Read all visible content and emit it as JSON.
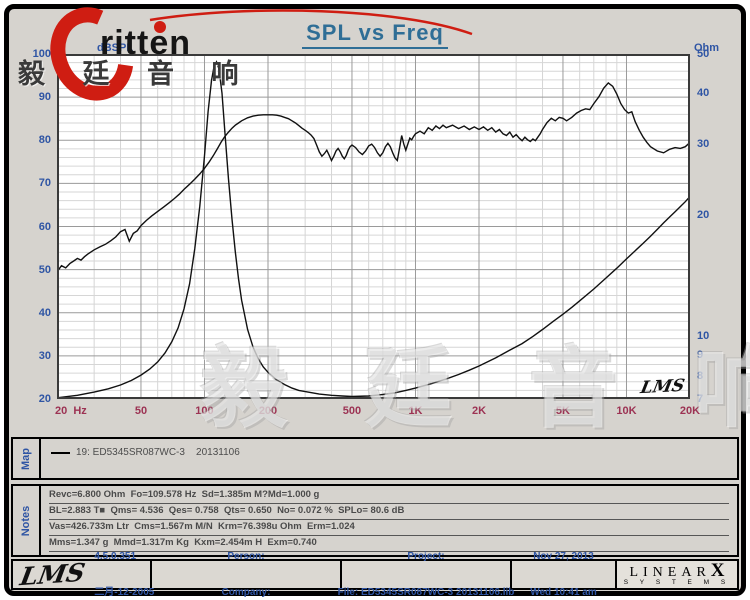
{
  "page": {
    "title": "SPL vs Freq"
  },
  "branding": {
    "logo_text": "ritten",
    "logo_cn": "毅 廷 音 响",
    "watermark": "毅 廷 音 响",
    "red": "#cf1d12"
  },
  "chart_data": {
    "type": "line",
    "title": "SPL vs Freq",
    "grid": "log-x, both axes on",
    "x_axis": {
      "scale": "log",
      "min": 20,
      "max": 20000,
      "ticks": [
        {
          "f": 20,
          "label": "20  Hz",
          "align": "left"
        },
        {
          "f": 50,
          "label": "50"
        },
        {
          "f": 100,
          "label": "100"
        },
        {
          "f": 200,
          "label": "200"
        },
        {
          "f": 500,
          "label": "500"
        },
        {
          "f": 1000,
          "label": "1K"
        },
        {
          "f": 2000,
          "label": "2K"
        },
        {
          "f": 5000,
          "label": "5K"
        },
        {
          "f": 10000,
          "label": "10K"
        },
        {
          "f": 20000,
          "label": "20K"
        }
      ],
      "major": [
        50,
        100,
        200,
        500,
        1000,
        2000,
        5000,
        10000
      ]
    },
    "y_left": {
      "label": "dBSPL",
      "scale": "linear",
      "min": 20,
      "max": 100,
      "major_step": 10,
      "minor_step": 2,
      "ticks": [
        100,
        90,
        80,
        70,
        60,
        50,
        40,
        30,
        20
      ]
    },
    "y_right": {
      "label": "Ohm",
      "scale": "log",
      "min": 7,
      "max": 50,
      "ticks": [
        50,
        40,
        30,
        20,
        10,
        9,
        8,
        7
      ]
    },
    "inner_signature": "LMS",
    "series": [
      {
        "name": "19: ED5345SR087WC-3  20131106 (SPL)",
        "axis": "left",
        "color": "#111111",
        "points": [
          [
            20,
            49.5
          ],
          [
            21,
            50.9
          ],
          [
            22,
            50.4
          ],
          [
            23,
            51.4
          ],
          [
            24,
            52.0
          ],
          [
            25,
            52.6
          ],
          [
            26,
            52.2
          ],
          [
            27,
            53.0
          ],
          [
            28,
            53.6
          ],
          [
            30,
            54.6
          ],
          [
            32,
            55.3
          ],
          [
            34,
            55.9
          ],
          [
            36,
            56.7
          ],
          [
            38,
            57.6
          ],
          [
            40,
            58.8
          ],
          [
            42,
            59.3
          ],
          [
            44,
            56.6
          ],
          [
            46,
            58.4
          ],
          [
            48,
            59.0
          ],
          [
            50,
            60.2
          ],
          [
            53,
            61.4
          ],
          [
            56,
            62.4
          ],
          [
            60,
            63.5
          ],
          [
            64,
            64.5
          ],
          [
            68,
            65.5
          ],
          [
            72,
            66.5
          ],
          [
            76,
            67.5
          ],
          [
            80,
            68.6
          ],
          [
            85,
            69.8
          ],
          [
            90,
            71.0
          ],
          [
            95,
            72.2
          ],
          [
            100,
            73.5
          ],
          [
            105,
            74.9
          ],
          [
            110,
            76.4
          ],
          [
            115,
            78.0
          ],
          [
            120,
            79.6
          ],
          [
            125,
            80.9
          ],
          [
            130,
            81.9
          ],
          [
            135,
            82.8
          ],
          [
            140,
            83.5
          ],
          [
            145,
            84.0
          ],
          [
            150,
            84.5
          ],
          [
            160,
            85.2
          ],
          [
            170,
            85.6
          ],
          [
            180,
            85.8
          ],
          [
            190,
            85.9
          ],
          [
            200,
            85.9
          ],
          [
            210,
            85.9
          ],
          [
            220,
            85.8
          ],
          [
            230,
            85.6
          ],
          [
            240,
            85.3
          ],
          [
            250,
            85.0
          ],
          [
            260,
            84.5
          ],
          [
            270,
            84.0
          ],
          [
            280,
            83.4
          ],
          [
            290,
            82.8
          ],
          [
            300,
            82.3
          ],
          [
            310,
            81.8
          ],
          [
            320,
            81.2
          ],
          [
            330,
            80.4
          ],
          [
            340,
            78.9
          ],
          [
            350,
            77.3
          ],
          [
            360,
            76.3
          ],
          [
            370,
            76.9
          ],
          [
            380,
            77.7
          ],
          [
            390,
            76.5
          ],
          [
            400,
            75.3
          ],
          [
            410,
            76.3
          ],
          [
            420,
            77.5
          ],
          [
            430,
            78.1
          ],
          [
            440,
            77.3
          ],
          [
            450,
            76.3
          ],
          [
            460,
            75.7
          ],
          [
            470,
            76.5
          ],
          [
            480,
            77.7
          ],
          [
            490,
            78.5
          ],
          [
            500,
            78.9
          ],
          [
            520,
            78.3
          ],
          [
            540,
            77.3
          ],
          [
            560,
            76.7
          ],
          [
            580,
            77.5
          ],
          [
            600,
            78.7
          ],
          [
            620,
            79.1
          ],
          [
            640,
            78.3
          ],
          [
            660,
            77.1
          ],
          [
            680,
            76.3
          ],
          [
            700,
            77.1
          ],
          [
            720,
            78.5
          ],
          [
            740,
            79.3
          ],
          [
            760,
            78.5
          ],
          [
            780,
            77.1
          ],
          [
            800,
            75.9
          ],
          [
            820,
            75.3
          ],
          [
            840,
            78.1
          ],
          [
            860,
            81.1
          ],
          [
            880,
            79.1
          ],
          [
            900,
            77.7
          ],
          [
            920,
            79.1
          ],
          [
            940,
            80.5
          ],
          [
            960,
            80.1
          ],
          [
            980,
            80.9
          ],
          [
            1000,
            81.5
          ],
          [
            1050,
            82.1
          ],
          [
            1100,
            81.5
          ],
          [
            1150,
            82.9
          ],
          [
            1200,
            82.3
          ],
          [
            1250,
            83.3
          ],
          [
            1300,
            82.7
          ],
          [
            1350,
            83.5
          ],
          [
            1400,
            82.9
          ],
          [
            1500,
            83.5
          ],
          [
            1600,
            82.7
          ],
          [
            1700,
            83.3
          ],
          [
            1800,
            82.5
          ],
          [
            1900,
            83.1
          ],
          [
            2000,
            82.5
          ],
          [
            2100,
            83.1
          ],
          [
            2200,
            82.3
          ],
          [
            2300,
            82.9
          ],
          [
            2400,
            81.9
          ],
          [
            2500,
            82.5
          ],
          [
            2600,
            81.5
          ],
          [
            2700,
            81.1
          ],
          [
            2800,
            81.9
          ],
          [
            2900,
            80.7
          ],
          [
            3000,
            81.3
          ],
          [
            3100,
            80.5
          ],
          [
            3200,
            79.9
          ],
          [
            3300,
            80.7
          ],
          [
            3400,
            80.1
          ],
          [
            3500,
            79.7
          ],
          [
            3600,
            80.3
          ],
          [
            3700,
            79.9
          ],
          [
            3800,
            80.7
          ],
          [
            3900,
            81.5
          ],
          [
            4000,
            82.5
          ],
          [
            4200,
            84.1
          ],
          [
            4400,
            85.1
          ],
          [
            4600,
            84.5
          ],
          [
            4800,
            85.3
          ],
          [
            5000,
            85.1
          ],
          [
            5200,
            84.5
          ],
          [
            5500,
            85.3
          ],
          [
            5800,
            86.3
          ],
          [
            6100,
            86.9
          ],
          [
            6400,
            87.3
          ],
          [
            6700,
            87.1
          ],
          [
            7000,
            88.5
          ],
          [
            7400,
            90.1
          ],
          [
            7800,
            92.1
          ],
          [
            8200,
            93.3
          ],
          [
            8600,
            92.5
          ],
          [
            9000,
            90.7
          ],
          [
            9400,
            88.5
          ],
          [
            9800,
            87.1
          ],
          [
            10200,
            86.3
          ],
          [
            10600,
            86.6
          ],
          [
            11000,
            84.3
          ],
          [
            11500,
            82.3
          ],
          [
            12000,
            80.7
          ],
          [
            12500,
            79.5
          ],
          [
            13000,
            78.5
          ],
          [
            14000,
            77.5
          ],
          [
            15000,
            77.1
          ],
          [
            16000,
            77.9
          ],
          [
            17000,
            78.3
          ],
          [
            18000,
            78.1
          ],
          [
            19000,
            78.5
          ],
          [
            20000,
            79.5
          ]
        ]
      },
      {
        "name": "impedance",
        "axis": "right",
        "color": "#111111",
        "points": [
          [
            20,
            7.05
          ],
          [
            25,
            7.15
          ],
          [
            30,
            7.28
          ],
          [
            35,
            7.42
          ],
          [
            40,
            7.58
          ],
          [
            45,
            7.78
          ],
          [
            50,
            8.02
          ],
          [
            55,
            8.3
          ],
          [
            60,
            8.65
          ],
          [
            65,
            9.1
          ],
          [
            70,
            9.7
          ],
          [
            75,
            10.5
          ],
          [
            80,
            11.7
          ],
          [
            85,
            13.5
          ],
          [
            90,
            16.5
          ],
          [
            95,
            21
          ],
          [
            100,
            28
          ],
          [
            104,
            36
          ],
          [
            108,
            43
          ],
          [
            111,
            46.5
          ],
          [
            114,
            47.8
          ],
          [
            117,
            46
          ],
          [
            121,
            40
          ],
          [
            125,
            32
          ],
          [
            130,
            24.5
          ],
          [
            135,
            19.5
          ],
          [
            140,
            16.2
          ],
          [
            145,
            13.9
          ],
          [
            150,
            12.3
          ],
          [
            160,
            10.4
          ],
          [
            170,
            9.4
          ],
          [
            180,
            8.8
          ],
          [
            190,
            8.4
          ],
          [
            200,
            8.15
          ],
          [
            220,
            7.8
          ],
          [
            240,
            7.6
          ],
          [
            260,
            7.45
          ],
          [
            280,
            7.35
          ],
          [
            300,
            7.3
          ],
          [
            350,
            7.2
          ],
          [
            400,
            7.15
          ],
          [
            450,
            7.12
          ],
          [
            500,
            7.1
          ],
          [
            600,
            7.12
          ],
          [
            700,
            7.18
          ],
          [
            800,
            7.25
          ],
          [
            900,
            7.35
          ],
          [
            1000,
            7.45
          ],
          [
            1200,
            7.65
          ],
          [
            1400,
            7.85
          ],
          [
            1600,
            8.05
          ],
          [
            1800,
            8.25
          ],
          [
            2000,
            8.45
          ],
          [
            2400,
            8.85
          ],
          [
            2800,
            9.25
          ],
          [
            3200,
            9.6
          ],
          [
            3600,
            10.0
          ],
          [
            4000,
            10.4
          ],
          [
            4500,
            10.9
          ],
          [
            5000,
            11.35
          ],
          [
            5500,
            11.8
          ],
          [
            6000,
            12.25
          ],
          [
            7000,
            13.1
          ],
          [
            8000,
            13.95
          ],
          [
            9000,
            14.75
          ],
          [
            10000,
            15.55
          ],
          [
            11000,
            16.3
          ],
          [
            12000,
            17.0
          ],
          [
            13000,
            17.7
          ],
          [
            14000,
            18.4
          ],
          [
            15000,
            19.1
          ],
          [
            16000,
            19.75
          ],
          [
            17000,
            20.35
          ],
          [
            18000,
            20.95
          ],
          [
            19000,
            21.55
          ],
          [
            20000,
            22.2
          ]
        ]
      }
    ]
  },
  "map_section": {
    "tab": "Map",
    "legend": "19: ED5345SR087WC-3    20131106"
  },
  "notes_section": {
    "tab": "Notes",
    "lines": [
      "Revc=6.800 Ohm  Fo=109.578 Hz  Sd=1.385m M?Md=1.000 g",
      "BL=2.883 T■  Qms= 4.536  Qes= 0.758  Qts= 0.650  No= 0.072 %  SPLo= 80.6 dB",
      "Vas=426.733m Ltr  Cms=1.567m M/N  Krm=76.398u Ohm  Erm=1.024",
      "Mms=1.347 g  Mmd=1.317m Kg  Kxm=2.454m H  Exm=0.740"
    ]
  },
  "footer": {
    "lms_logo": "LMS",
    "version": "4.5.0.351",
    "version_date": "二月-12-2005",
    "person_label": "Person:",
    "company_label": "Company:",
    "project_label": "Project:",
    "file_label": "File: ED5345SR087WC-3 20131106.lib",
    "date": "Nov 27, 2013",
    "time": "Wed 10:41 am",
    "linearx_line1": "LINEAR",
    "linearx_x": "X",
    "linearx_line2": "S Y S T E M S"
  },
  "colors": {
    "page_bg": "#d6d3ce",
    "plot_bg": "#ffffff",
    "grid_major": "#9a9a9a",
    "grid_minor": "#d6d6d6",
    "frame": "#3a3a3a",
    "title": "#2f6e96",
    "y_tick": "#2f55a4",
    "x_tick": "#9c3253",
    "curve": "#111111"
  }
}
